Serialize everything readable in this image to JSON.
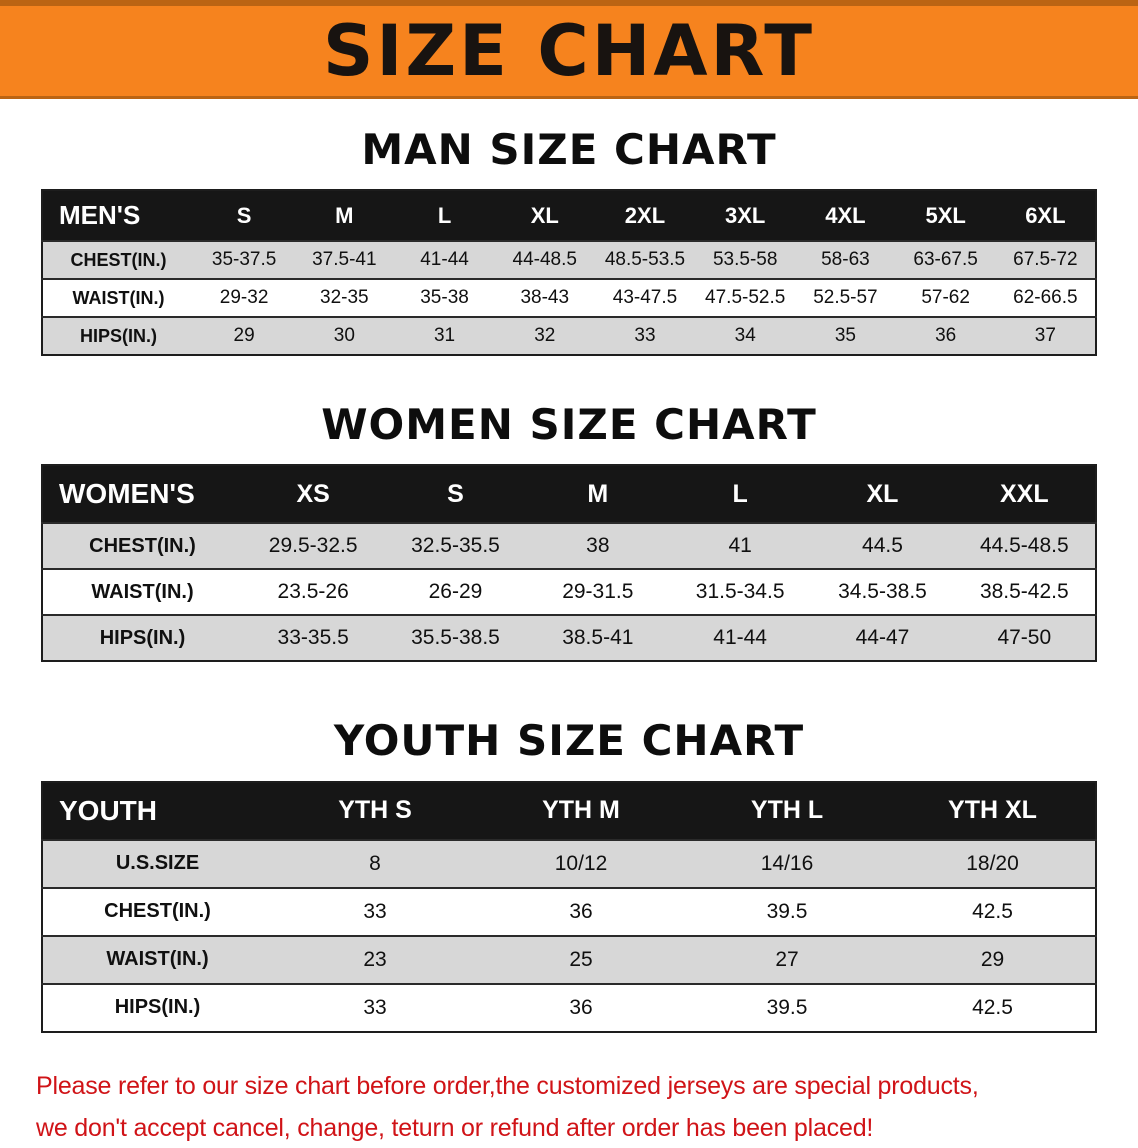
{
  "banner": {
    "title": "SIZE CHART"
  },
  "colors": {
    "banner_bg": "#f6831e",
    "banner_edge": "#bb6413",
    "table_header_bg": "#161616",
    "table_header_text": "#ffffff",
    "row_alt_bg": "#d7d7d7",
    "row_bg": "#ffffff",
    "disclaimer_text": "#d01317",
    "heading_text": "#0d0d0d"
  },
  "sections": [
    {
      "id": "men",
      "heading": "MAN SIZE CHART",
      "table": {
        "header": [
          "MEN'S",
          "S",
          "M",
          "L",
          "XL",
          "2XL",
          "3XL",
          "4XL",
          "5XL",
          "6XL"
        ],
        "rows": [
          [
            "CHEST(IN.)",
            "35-37.5",
            "37.5-41",
            "41-44",
            "44-48.5",
            "48.5-53.5",
            "53.5-58",
            "58-63",
            "63-67.5",
            "67.5-72"
          ],
          [
            "WAIST(IN.)",
            "29-32",
            "32-35",
            "35-38",
            "38-43",
            "43-47.5",
            "47.5-52.5",
            "52.5-57",
            "57-62",
            "62-66.5"
          ],
          [
            "HIPS(IN.)",
            "29",
            "30",
            "31",
            "32",
            "33",
            "34",
            "35",
            "36",
            "37"
          ]
        ]
      }
    },
    {
      "id": "women",
      "heading": "WOMEN SIZE CHART",
      "table": {
        "header": [
          "WOMEN'S",
          "XS",
          "S",
          "M",
          "L",
          "XL",
          "XXL"
        ],
        "rows": [
          [
            "CHEST(IN.)",
            "29.5-32.5",
            "32.5-35.5",
            "38",
            "41",
            "44.5",
            "44.5-48.5"
          ],
          [
            "WAIST(IN.)",
            "23.5-26",
            "26-29",
            "29-31.5",
            "31.5-34.5",
            "34.5-38.5",
            "38.5-42.5"
          ],
          [
            "HIPS(IN.)",
            "33-35.5",
            "35.5-38.5",
            "38.5-41",
            "41-44",
            "44-47",
            "47-50"
          ]
        ]
      }
    },
    {
      "id": "youth",
      "heading": "YOUTH SIZE CHART",
      "table": {
        "header": [
          "YOUTH",
          "YTH S",
          "YTH M",
          "YTH L",
          "YTH XL"
        ],
        "rows": [
          [
            "U.S.SIZE",
            "8",
            "10/12",
            "14/16",
            "18/20"
          ],
          [
            "CHEST(IN.)",
            "33",
            "36",
            "39.5",
            "42.5"
          ],
          [
            "WAIST(IN.)",
            "23",
            "25",
            "27",
            "29"
          ],
          [
            "HIPS(IN.)",
            "33",
            "36",
            "39.5",
            "42.5"
          ]
        ]
      }
    }
  ],
  "disclaimer": {
    "lines": [
      "Please refer to our size chart before order,the customized jerseys are special products,",
      "we don't accept cancel, change, teturn or refund after order has been placed!"
    ]
  }
}
